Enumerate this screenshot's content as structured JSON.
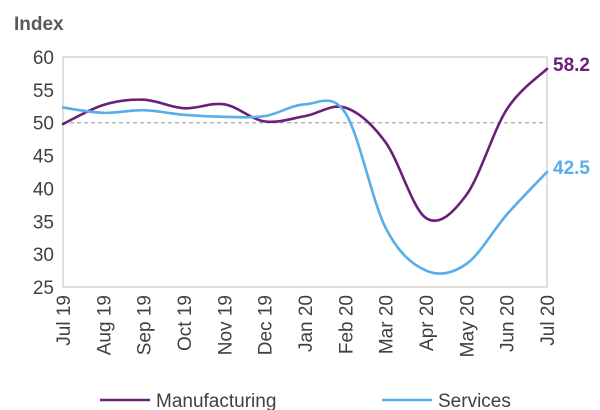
{
  "chart_data": {
    "type": "line",
    "ylabel": "Index",
    "ylim": [
      25,
      60
    ],
    "yticks": [
      25,
      30,
      35,
      40,
      45,
      50,
      55,
      60
    ],
    "categories": [
      "Jul 19",
      "Aug 19",
      "Sep 19",
      "Oct 19",
      "Nov 19",
      "Dec 19",
      "Jan 20",
      "Feb 20",
      "Mar 20",
      "Apr 20",
      "May 20",
      "Jun 20",
      "Jul 20"
    ],
    "reference_line": 50,
    "grid": false,
    "legend_position": "bottom",
    "series": [
      {
        "name": "Manufacturing",
        "color": "#6B1F7B",
        "values": [
          49.8,
          52.7,
          53.5,
          52.2,
          52.8,
          50.2,
          51.0,
          52.3,
          47.0,
          35.5,
          39.0,
          52.0,
          58.2
        ],
        "end_label": "58.2"
      },
      {
        "name": "Services",
        "color": "#56AEEA",
        "values": [
          52.3,
          51.5,
          51.9,
          51.2,
          50.9,
          51.0,
          52.8,
          51.5,
          34.0,
          27.5,
          28.5,
          36.0,
          42.5
        ],
        "end_label": "42.5"
      }
    ]
  }
}
